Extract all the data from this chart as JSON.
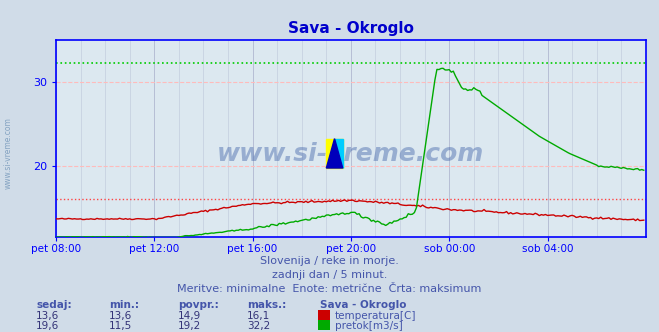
{
  "title": "Sava - Okroglo",
  "title_color": "#0000cc",
  "bg_color": "#d0dce8",
  "plot_bg_color": "#dce8f0",
  "grid_color_v": "#b0b8d0",
  "grid_color_h": "#ffbbbb",
  "watermark": "www.si-vreme.com",
  "axis_color": "#0000ff",
  "xlim_start": 0,
  "xlim_end": 288,
  "ylim_bottom": 11.5,
  "ylim_top": 35.0,
  "yticks": [
    20,
    30
  ],
  "xtick_labels": [
    "pet 08:00",
    "pet 12:00",
    "pet 16:00",
    "pet 20:00",
    "sob 00:00",
    "sob 04:00"
  ],
  "xtick_positions": [
    0,
    48,
    96,
    144,
    192,
    240
  ],
  "max_temp": 16.1,
  "max_flow": 32.2,
  "temp_color": "#cc0000",
  "flow_color": "#00aa00",
  "hline_color_temp": "#ff4444",
  "hline_color_flow": "#00cc00",
  "subtitle1": "Slovenija / reke in morje.",
  "subtitle2": "zadnji dan / 5 minut.",
  "subtitle3": "Meritve: minimalne  Enote: metrične  Črta: maksimum",
  "subtitle_color": "#4455aa",
  "table_header": [
    "sedaj:",
    "min.:",
    "povpr.:",
    "maks.:",
    "Sava - Okroglo"
  ],
  "table_row1": [
    "13,6",
    "13,6",
    "14,9",
    "16,1"
  ],
  "table_row2": [
    "19,6",
    "11,5",
    "19,2",
    "32,2"
  ],
  "table_label1": "temperatura[C]",
  "table_label2": "pretok[m3/s]",
  "left_label": "www.si-vreme.com"
}
